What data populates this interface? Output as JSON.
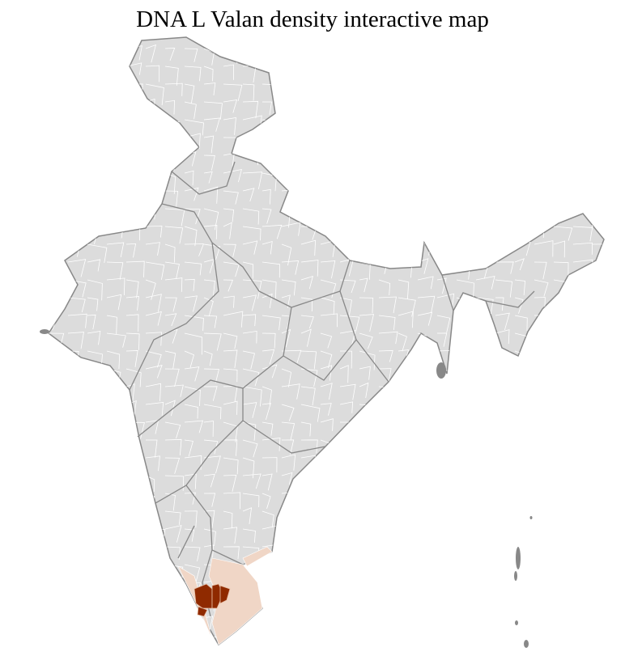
{
  "title": "DNA L Valan density interactive map",
  "colors": {
    "no_data": "#dcdcdc",
    "state_border": "#888888",
    "district_border": "#ffffff",
    "low_density": "#f0d6c6",
    "high_density": "#8f2a00"
  }
}
